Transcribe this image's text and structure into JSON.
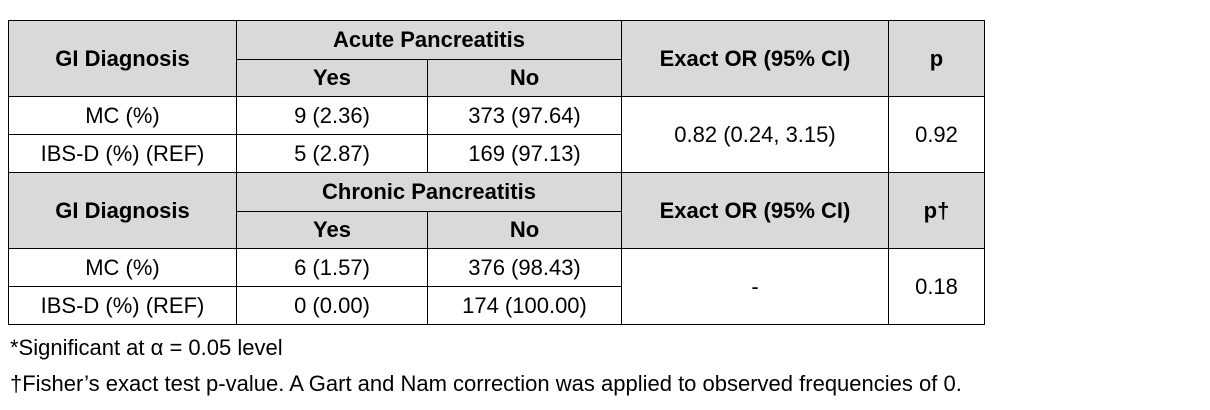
{
  "table1": {
    "col_group": "GI Diagnosis",
    "outcome": "Acute Pancreatitis",
    "yes": "Yes",
    "no": "No",
    "or_header": "Exact OR (95% CI)",
    "p_header": "p",
    "rows": [
      {
        "label": "MC (%)",
        "yes": "9 (2.36)",
        "no": "373 (97.64)"
      },
      {
        "label": "IBS-D (%) (REF)",
        "yes": "5 (2.87)",
        "no": "169 (97.13)"
      }
    ],
    "or_value": "0.82 (0.24, 3.15)",
    "p_value": "0.92"
  },
  "table2": {
    "col_group": "GI Diagnosis",
    "outcome": "Chronic Pancreatitis",
    "yes": "Yes",
    "no": "No",
    "or_header": "Exact OR (95% CI)",
    "p_header": "p†",
    "rows": [
      {
        "label": "MC (%)",
        "yes": "6 (1.57)",
        "no": "376 (98.43)"
      },
      {
        "label": "IBS-D (%) (REF)",
        "yes": "0 (0.00)",
        "no": "174 (100.00)"
      }
    ],
    "or_value": "-",
    "p_value": "0.18"
  },
  "footnotes": [
    "*Significant at α = 0.05 level",
    "†Fisher’s exact test p-value. A Gart and Nam correction was applied to observed frequencies of 0."
  ]
}
